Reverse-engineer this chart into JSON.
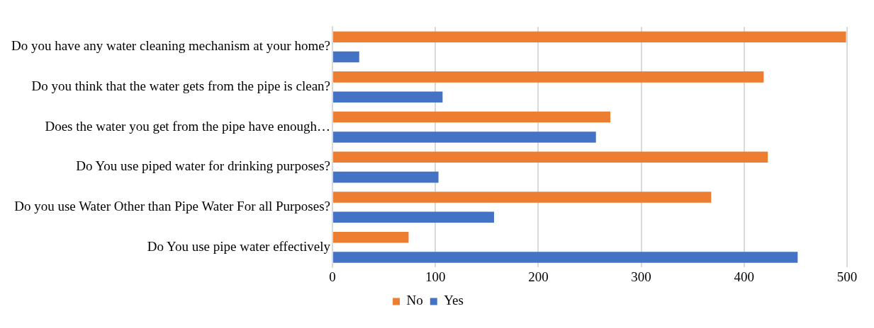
{
  "chart_data": {
    "type": "bar",
    "orientation": "horizontal",
    "categories": [
      "Do you have any water cleaning mechanism at your home?",
      "Do you think that the water gets from the pipe is clean?",
      "Does the water you get from the pipe have enough…",
      "Do You use piped water for drinking purposes?",
      "Do you use Water Other than Pipe Water For all Purposes?",
      "Do You use pipe water effectively"
    ],
    "series": [
      {
        "name": "No",
        "color": "#ed7d31",
        "values": [
          499,
          419,
          270,
          423,
          368,
          74
        ]
      },
      {
        "name": "Yes",
        "color": "#4472c4",
        "values": [
          26,
          107,
          256,
          103,
          157,
          452
        ]
      }
    ],
    "xlim": [
      0,
      500
    ],
    "xticks": [
      0,
      100,
      200,
      300,
      400,
      500
    ],
    "grid": "x",
    "legend": "bottom"
  }
}
